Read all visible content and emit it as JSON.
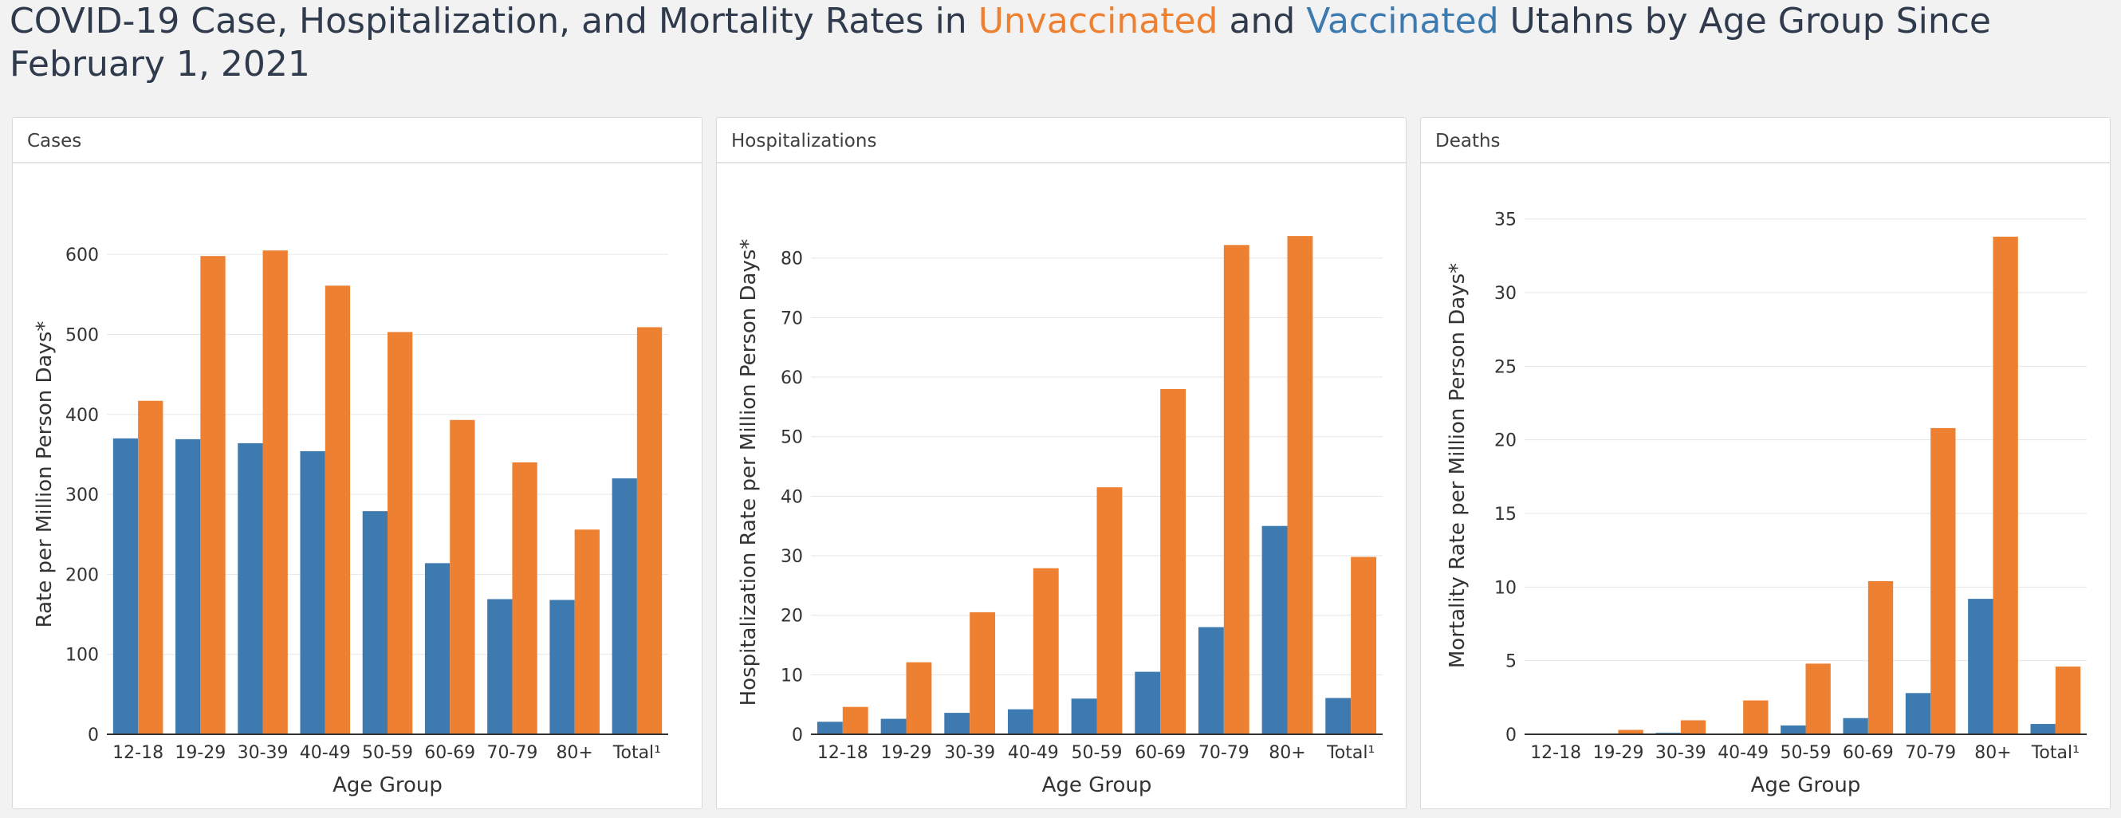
{
  "page": {
    "title_prefix": "COVID-19 Case, Hospitalization, and Mortality Rates in ",
    "title_unvaccinated": "Unvaccinated",
    "title_and": " and ",
    "title_vaccinated": "Vaccinated",
    "title_suffix": " Utahns by Age Group Since February 1, 2021"
  },
  "colors": {
    "vaccinated": "#3c7ab0",
    "unvaccinated": "#ee8131",
    "grid": "#e6e6e6",
    "axis": "#333333"
  },
  "chart_data": [
    {
      "type": "bar",
      "panel_title": "Cases",
      "xlabel": "Age Group",
      "ylabel": "Rate per Million Person Days*",
      "categories": [
        "12-18",
        "19-29",
        "30-39",
        "40-49",
        "50-59",
        "60-69",
        "70-79",
        "80+",
        "Total¹"
      ],
      "ylim": [
        0,
        650
      ],
      "yticks": [
        0,
        100,
        200,
        300,
        400,
        500,
        600
      ],
      "series": [
        {
          "key": "vaccinated",
          "values": [
            370,
            369,
            364,
            354,
            279,
            214,
            169,
            168,
            320
          ]
        },
        {
          "key": "unvaccinated",
          "values": [
            417,
            598,
            605,
            561,
            503,
            393,
            340,
            256,
            509
          ]
        }
      ]
    },
    {
      "type": "bar",
      "panel_title": "Hospitalizations",
      "xlabel": "Age Group",
      "ylabel": "Hospitalization Rate per Million Person Days*",
      "categories": [
        "12-18",
        "19-29",
        "30-39",
        "40-49",
        "50-59",
        "60-69",
        "70-79",
        "80+",
        "Total¹"
      ],
      "ylim": [
        0,
        88
      ],
      "yticks": [
        0,
        10,
        20,
        30,
        40,
        50,
        60,
        70,
        80
      ],
      "series": [
        {
          "key": "vaccinated",
          "values": [
            2.1,
            2.6,
            3.6,
            4.2,
            6.0,
            10.5,
            18.0,
            35.0,
            6.1
          ]
        },
        {
          "key": "unvaccinated",
          "values": [
            4.6,
            12.1,
            20.5,
            27.9,
            41.5,
            58.0,
            82.2,
            83.7,
            29.8
          ]
        }
      ]
    },
    {
      "type": "bar",
      "panel_title": "Deaths",
      "xlabel": "Age Group",
      "ylabel": "Mortality Rate per Million Person Days*",
      "categories": [
        "12-18",
        "19-29",
        "30-39",
        "40-49",
        "50-59",
        "60-69",
        "70-79",
        "80+",
        "Total¹"
      ],
      "ylim": [
        0,
        36.5
      ],
      "yticks": [
        0,
        5,
        10,
        15,
        20,
        25,
        30,
        35
      ],
      "series": [
        {
          "key": "vaccinated",
          "values": [
            0.0,
            0.05,
            0.1,
            0.05,
            0.6,
            1.1,
            2.8,
            9.2,
            0.7
          ]
        },
        {
          "key": "unvaccinated",
          "values": [
            0.05,
            0.3,
            0.95,
            2.3,
            4.8,
            10.4,
            20.8,
            33.8,
            4.6
          ]
        }
      ]
    }
  ]
}
